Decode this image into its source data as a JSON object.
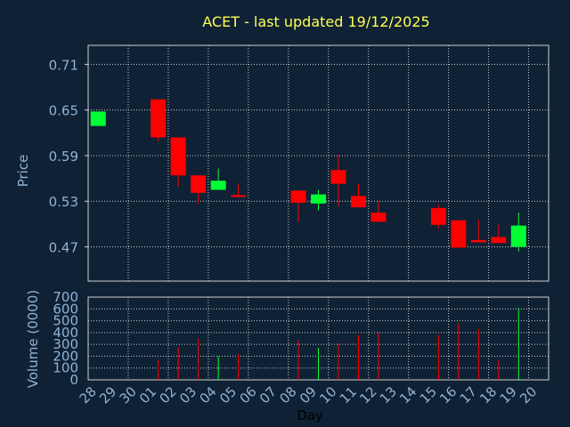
{
  "colors": {
    "background": "#0f2135",
    "title": "#ffff55",
    "axis_text": "#8fb3d3",
    "grid": "#d0d0d0",
    "frame": "#d0d0d0",
    "up": "#00ff33",
    "down": "#ff0000"
  },
  "chart_data": [
    {
      "type": "candlestick",
      "title": "ACET - last updated 19/12/2025",
      "ylabel": "Price",
      "ylim": [
        0.425,
        0.735
      ],
      "yticks": [
        "0.71",
        "0.65",
        "0.59",
        "0.53",
        "0.47"
      ],
      "yticks_values": [
        0.71,
        0.65,
        0.59,
        0.53,
        0.47
      ],
      "grid": true,
      "candles": [
        {
          "x": "28",
          "open": 0.629,
          "close": 0.648,
          "high": 0.648,
          "low": 0.629
        },
        {
          "x": "01",
          "open": 0.664,
          "close": 0.614,
          "high": 0.664,
          "low": 0.609
        },
        {
          "x": "02",
          "open": 0.614,
          "close": 0.564,
          "high": 0.614,
          "low": 0.549
        },
        {
          "x": "03",
          "open": 0.564,
          "close": 0.541,
          "high": 0.564,
          "low": 0.527
        },
        {
          "x": "04",
          "open": 0.545,
          "close": 0.557,
          "high": 0.573,
          "low": 0.545
        },
        {
          "x": "05",
          "open": 0.538,
          "close": 0.536,
          "high": 0.552,
          "low": 0.536
        },
        {
          "x": "08",
          "open": 0.544,
          "close": 0.528,
          "high": 0.544,
          "low": 0.503
        },
        {
          "x": "09",
          "open": 0.527,
          "close": 0.539,
          "high": 0.545,
          "low": 0.518
        },
        {
          "x": "10",
          "open": 0.571,
          "close": 0.553,
          "high": 0.591,
          "low": 0.523
        },
        {
          "x": "11",
          "open": 0.537,
          "close": 0.522,
          "high": 0.553,
          "low": 0.522
        },
        {
          "x": "12",
          "open": 0.515,
          "close": 0.503,
          "high": 0.53,
          "low": 0.503
        },
        {
          "x": "15",
          "open": 0.521,
          "close": 0.499,
          "high": 0.525,
          "low": 0.494
        },
        {
          "x": "16",
          "open": 0.505,
          "close": 0.469,
          "high": 0.505,
          "low": 0.469
        },
        {
          "x": "17",
          "open": 0.479,
          "close": 0.476,
          "high": 0.506,
          "low": 0.476
        },
        {
          "x": "18",
          "open": 0.483,
          "close": 0.475,
          "high": 0.499,
          "low": 0.475
        },
        {
          "x": "19",
          "open": 0.47,
          "close": 0.498,
          "high": 0.515,
          "low": 0.464
        }
      ]
    },
    {
      "type": "bar",
      "ylabel": "Volume (0000)",
      "xlabel": "Day",
      "ylim": [
        0,
        700
      ],
      "yticks": [
        "700",
        "600",
        "500",
        "400",
        "300",
        "200",
        "100",
        "0"
      ],
      "yticks_values": [
        700,
        600,
        500,
        400,
        300,
        200,
        100,
        0
      ],
      "categories": [
        "28",
        "29",
        "30",
        "01",
        "02",
        "03",
        "04",
        "05",
        "06",
        "07",
        "08",
        "09",
        "10",
        "11",
        "12",
        "13",
        "14",
        "15",
        "16",
        "17",
        "18",
        "19",
        "20"
      ],
      "grid": true,
      "bars": [
        {
          "x": "01",
          "value": 170,
          "direction": "down"
        },
        {
          "x": "02",
          "value": 280,
          "direction": "down"
        },
        {
          "x": "03",
          "value": 350,
          "direction": "down"
        },
        {
          "x": "04",
          "value": 200,
          "direction": "up"
        },
        {
          "x": "05",
          "value": 220,
          "direction": "down"
        },
        {
          "x": "08",
          "value": 340,
          "direction": "down"
        },
        {
          "x": "09",
          "value": 270,
          "direction": "up"
        },
        {
          "x": "10",
          "value": 310,
          "direction": "down"
        },
        {
          "x": "11",
          "value": 380,
          "direction": "down"
        },
        {
          "x": "12",
          "value": 400,
          "direction": "down"
        },
        {
          "x": "15",
          "value": 380,
          "direction": "down"
        },
        {
          "x": "16",
          "value": 480,
          "direction": "down"
        },
        {
          "x": "17",
          "value": 430,
          "direction": "down"
        },
        {
          "x": "18",
          "value": 170,
          "direction": "down"
        },
        {
          "x": "19",
          "value": 610,
          "direction": "up"
        }
      ]
    }
  ]
}
